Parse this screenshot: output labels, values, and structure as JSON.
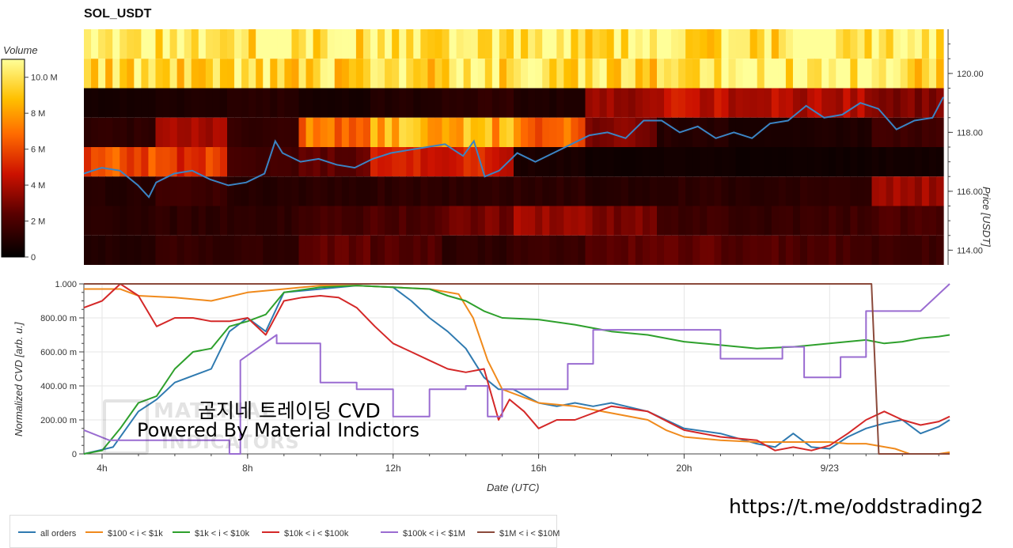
{
  "title": "SOL_USDT",
  "url_text": "https://t.me/oddstrading2",
  "overlay": {
    "line1": "곰지네 트레이딩 CVD",
    "line2": "Powered By Material Indictors"
  },
  "watermark": {
    "line1": "MATERIAL",
    "line2": "INDICATORS"
  },
  "colors": {
    "all_orders": "#2f7ab0",
    "r100_1k": "#f08a1c",
    "r1k_10k": "#2ea02c",
    "r10k_100k": "#d42828",
    "r100k_1m": "#9a6cd1",
    "r1m_10m": "#8b4a3b",
    "heat_low": "#000000",
    "heat_mid": "#cc1100",
    "heat_high": "#ffff66"
  },
  "chart_data": [
    {
      "type": "heatmap",
      "title": "SOL_USDT",
      "colorbar_label": "Volume",
      "colorbar_ticks": [
        "0",
        "2 M",
        "4 M",
        "6 M",
        "8 M",
        "10.0 M"
      ],
      "colorbar_range": [
        0,
        11000000
      ],
      "ylabel": "Price [USDT]",
      "yticks": [
        "114.00",
        "116.00",
        "118.00",
        "120.00"
      ],
      "ylim": [
        113.5,
        121.5
      ],
      "xlim_hours": [
        3.5,
        27.3
      ],
      "price_bands": [
        {
          "low": 120.5,
          "high": 121.5,
          "volume": [
            10.2,
            10.2,
            10.2,
            10.2,
            10.2,
            10.2,
            10.2,
            10.2,
            10.2,
            10.2,
            10.2,
            10.2
          ]
        },
        {
          "low": 119.5,
          "high": 120.5,
          "volume": [
            9.6,
            9.8,
            9.6,
            9.8,
            9.7,
            9.8,
            9.7,
            9.6,
            9.8,
            10.6,
            10.9,
            9.6
          ]
        },
        {
          "low": 118.5,
          "high": 119.5,
          "volume": [
            0.6,
            0.8,
            1.0,
            0.6,
            0.9,
            1.2,
            0.8,
            3.4,
            4.6,
            4.2,
            4.0,
            3.0
          ]
        },
        {
          "low": 117.5,
          "high": 118.5,
          "volume": [
            1.2,
            3.6,
            1.4,
            7.2,
            8.6,
            8.2,
            6.8,
            3.0,
            1.0,
            0.7,
            0.8,
            1.6
          ]
        },
        {
          "low": 116.5,
          "high": 117.5,
          "volume": [
            6.2,
            5.4,
            1.8,
            2.4,
            4.6,
            5.0,
            0.7,
            0.4,
            0.5,
            0.4,
            0.4,
            0.5
          ]
        },
        {
          "low": 115.5,
          "high": 116.5,
          "volume": [
            1.0,
            1.6,
            1.0,
            1.1,
            1.2,
            1.2,
            1.2,
            1.0,
            1.2,
            1.1,
            1.3,
            3.8
          ]
        },
        {
          "low": 114.5,
          "high": 115.5,
          "volume": [
            1.1,
            1.2,
            1.2,
            1.8,
            2.0,
            3.0,
            3.6,
            3.0,
            1.6,
            1.4,
            1.6,
            2.0
          ]
        },
        {
          "low": 113.5,
          "high": 114.5,
          "volume": [
            1.0,
            1.4,
            1.3,
            2.4,
            2.2,
            1.2,
            1.6,
            2.6,
            2.4,
            2.2,
            2.0,
            1.6
          ]
        }
      ],
      "volume_unit": "M",
      "series": [
        {
          "name": "Price",
          "x": [
            3.5,
            4.0,
            4.5,
            5.0,
            5.3,
            5.5,
            6.0,
            6.5,
            7.0,
            7.5,
            8.0,
            8.5,
            8.8,
            9.0,
            9.5,
            10.0,
            10.5,
            11.0,
            11.5,
            12.0,
            12.5,
            13.0,
            13.5,
            14.0,
            14.3,
            14.6,
            15.0,
            15.5,
            16.0,
            16.5,
            17.0,
            17.5,
            18.0,
            18.5,
            19.0,
            19.5,
            20.0,
            20.5,
            21.0,
            21.5,
            22.0,
            22.5,
            23.0,
            23.5,
            24.0,
            24.5,
            25.0,
            25.5,
            26.0,
            26.5,
            27.0,
            27.3
          ],
          "values": [
            116.6,
            116.8,
            116.7,
            116.2,
            115.8,
            116.3,
            116.6,
            116.7,
            116.4,
            116.2,
            116.3,
            116.6,
            117.7,
            117.3,
            117.0,
            117.1,
            116.9,
            116.8,
            117.1,
            117.3,
            117.4,
            117.5,
            117.6,
            117.2,
            117.7,
            116.5,
            116.7,
            117.3,
            117.0,
            117.3,
            117.6,
            117.9,
            118.0,
            117.8,
            118.4,
            118.4,
            118.0,
            118.2,
            117.8,
            118.0,
            117.8,
            118.3,
            118.4,
            118.9,
            118.5,
            118.6,
            119.0,
            118.8,
            118.1,
            118.4,
            118.5,
            119.2
          ]
        }
      ]
    },
    {
      "type": "line",
      "xlabel": "Date (UTC)",
      "ylabel": "Normalized CVD [arb. u.]",
      "yticks": [
        "0",
        "200.00 m",
        "400.00 m",
        "600.00 m",
        "800.00 m",
        "1.000"
      ],
      "ylim": [
        0,
        1
      ],
      "xticks": [
        "4h",
        "8h",
        "12h",
        "16h",
        "20h",
        "9/23"
      ],
      "xtick_hours": [
        4,
        8,
        12,
        16,
        20,
        24
      ],
      "xlim_hours": [
        3.5,
        27.3
      ],
      "legend_position": "bottom",
      "series": [
        {
          "name": "all orders",
          "x": [
            3.5,
            4.3,
            5.0,
            5.5,
            6.0,
            6.5,
            7.0,
            7.5,
            8.0,
            8.5,
            9.0,
            10.0,
            11.0,
            12.0,
            12.5,
            13.0,
            13.5,
            14.0,
            14.5,
            14.9,
            15.3,
            16.0,
            16.5,
            17.0,
            17.5,
            18.0,
            19.0,
            20.0,
            21.0,
            22.0,
            22.5,
            23.0,
            23.5,
            24.0,
            24.5,
            25.0,
            25.5,
            26.0,
            26.5,
            27.0,
            27.3
          ],
          "values": [
            0.0,
            0.04,
            0.25,
            0.32,
            0.42,
            0.46,
            0.5,
            0.72,
            0.8,
            0.72,
            0.95,
            0.97,
            0.99,
            0.98,
            0.9,
            0.8,
            0.72,
            0.62,
            0.45,
            0.38,
            0.38,
            0.3,
            0.28,
            0.3,
            0.28,
            0.3,
            0.25,
            0.15,
            0.12,
            0.06,
            0.04,
            0.12,
            0.04,
            0.03,
            0.1,
            0.15,
            0.18,
            0.2,
            0.12,
            0.16,
            0.2
          ]
        },
        {
          "name": "$100 < i < $1k",
          "x": [
            3.5,
            4.5,
            5.0,
            6.0,
            7.0,
            8.0,
            9.0,
            10.0,
            11.0,
            12.0,
            13.0,
            13.8,
            14.2,
            14.6,
            15.0,
            16.0,
            17.0,
            18.0,
            19.0,
            19.5,
            20.0,
            21.0,
            22.0,
            23.0,
            24.0,
            24.5,
            25.0,
            25.8,
            26.2,
            27.0,
            27.3
          ],
          "values": [
            0.97,
            0.97,
            0.93,
            0.92,
            0.9,
            0.95,
            0.97,
            0.99,
            0.99,
            0.98,
            0.97,
            0.94,
            0.8,
            0.55,
            0.38,
            0.3,
            0.28,
            0.24,
            0.2,
            0.14,
            0.1,
            0.08,
            0.07,
            0.07,
            0.07,
            0.06,
            0.06,
            0.03,
            0.0,
            0.0,
            0.01
          ]
        },
        {
          "name": "$1k < i < $10k",
          "x": [
            3.5,
            4.0,
            4.5,
            5.0,
            5.5,
            6.0,
            6.5,
            7.0,
            7.5,
            8.0,
            8.5,
            9.0,
            10.0,
            11.0,
            12.0,
            13.0,
            13.5,
            14.0,
            14.5,
            15.0,
            16.0,
            17.0,
            18.0,
            19.0,
            20.0,
            21.0,
            22.0,
            23.0,
            24.0,
            25.0,
            25.5,
            26.0,
            26.5,
            27.0,
            27.3
          ],
          "values": [
            0.0,
            0.02,
            0.15,
            0.3,
            0.34,
            0.5,
            0.6,
            0.62,
            0.75,
            0.78,
            0.82,
            0.95,
            0.98,
            0.99,
            0.98,
            0.97,
            0.93,
            0.9,
            0.84,
            0.8,
            0.79,
            0.76,
            0.72,
            0.7,
            0.66,
            0.64,
            0.62,
            0.63,
            0.65,
            0.67,
            0.65,
            0.66,
            0.68,
            0.69,
            0.7
          ]
        },
        {
          "name": "$10k < i < $100k",
          "x": [
            3.5,
            4.0,
            4.5,
            5.0,
            5.5,
            6.0,
            6.5,
            7.0,
            7.5,
            8.0,
            8.5,
            9.0,
            9.5,
            10.0,
            10.5,
            11.0,
            11.5,
            12.0,
            12.5,
            13.0,
            13.5,
            14.0,
            14.5,
            14.9,
            15.2,
            15.6,
            16.0,
            16.5,
            17.0,
            18.0,
            19.0,
            20.0,
            21.0,
            22.0,
            22.5,
            23.0,
            23.5,
            24.0,
            24.5,
            25.0,
            25.5,
            26.0,
            26.5,
            27.0,
            27.3
          ],
          "values": [
            0.86,
            0.9,
            1.0,
            0.93,
            0.75,
            0.8,
            0.8,
            0.78,
            0.78,
            0.8,
            0.7,
            0.9,
            0.92,
            0.93,
            0.92,
            0.86,
            0.75,
            0.65,
            0.6,
            0.55,
            0.5,
            0.48,
            0.5,
            0.2,
            0.32,
            0.25,
            0.15,
            0.2,
            0.2,
            0.28,
            0.25,
            0.14,
            0.1,
            0.08,
            0.02,
            0.04,
            0.02,
            0.05,
            0.12,
            0.2,
            0.25,
            0.2,
            0.17,
            0.19,
            0.22
          ]
        },
        {
          "name": "$100k < i < $1M",
          "x": [
            3.5,
            4.2,
            5.0,
            7.5,
            7.5,
            7.8,
            7.8,
            8.8,
            8.8,
            10.0,
            10.0,
            11.0,
            11.0,
            12.0,
            12.0,
            13.0,
            13.0,
            14.0,
            14.0,
            14.6,
            14.6,
            15.0,
            15.0,
            16.0,
            16.0,
            16.8,
            16.8,
            17.5,
            17.5,
            19.0,
            19.0,
            21.0,
            21.0,
            22.7,
            22.7,
            23.3,
            23.3,
            24.3,
            24.3,
            25.0,
            25.0,
            26.5,
            26.5,
            27.3
          ],
          "values": [
            0.14,
            0.08,
            0.08,
            0.08,
            0.0,
            0.0,
            0.55,
            0.7,
            0.65,
            0.65,
            0.42,
            0.42,
            0.38,
            0.38,
            0.22,
            0.22,
            0.38,
            0.38,
            0.4,
            0.4,
            0.22,
            0.22,
            0.38,
            0.38,
            0.38,
            0.38,
            0.53,
            0.53,
            0.73,
            0.73,
            0.73,
            0.73,
            0.56,
            0.56,
            0.63,
            0.63,
            0.45,
            0.45,
            0.57,
            0.57,
            0.84,
            0.84,
            0.84,
            1.0
          ]
        },
        {
          "name": "$1M < i < $10M",
          "x": [
            3.5,
            25.15,
            25.35,
            25.5,
            27.3
          ],
          "values": [
            1.0,
            1.0,
            0.0,
            0.0,
            0.0
          ]
        }
      ]
    }
  ]
}
